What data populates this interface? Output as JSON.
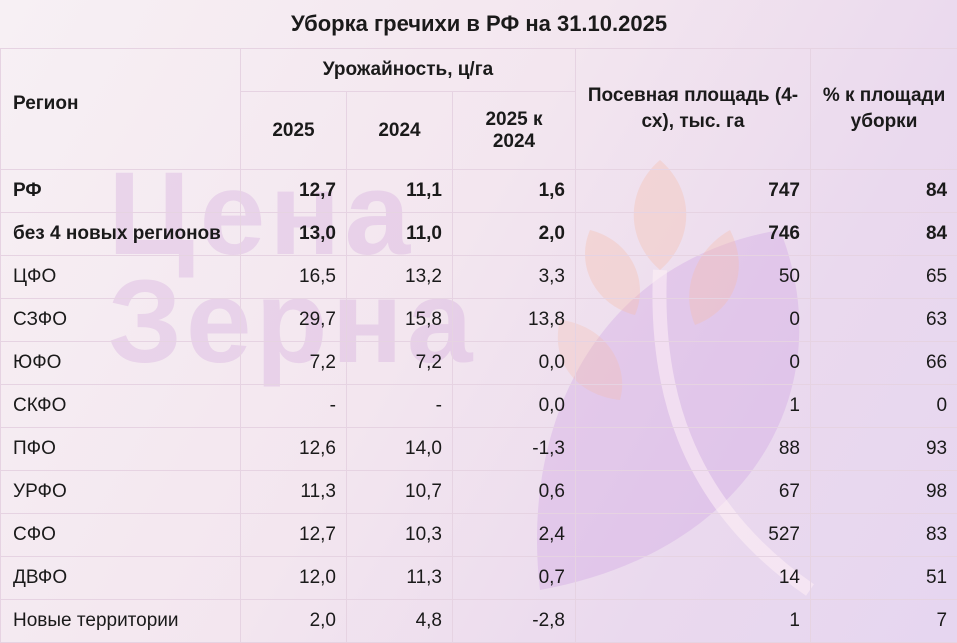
{
  "title": "Уборка гречихи в РФ на 31.10.2025",
  "watermark": {
    "line1": "Цена",
    "line2": "Зерна"
  },
  "header": {
    "region": "Регион",
    "yield_group": "Урожайность, ц/га",
    "y2025": "2025",
    "y2024": "2024",
    "diff": "2025 к 2024",
    "area": "Посевная площадь (4-сх), тыс. га",
    "pct": "% к площади уборки"
  },
  "rows": [
    {
      "region": "РФ",
      "y2025": "12,7",
      "y2024": "11,1",
      "diff": "1,6",
      "area": "747",
      "pct": "84",
      "bold": true
    },
    {
      "region": "без 4 новых регионов",
      "y2025": "13,0",
      "y2024": "11,0",
      "diff": "2,0",
      "area": "746",
      "pct": "84",
      "bold": true
    },
    {
      "region": "ЦФО",
      "y2025": "16,5",
      "y2024": "13,2",
      "diff": "3,3",
      "area": "50",
      "pct": "65"
    },
    {
      "region": "СЗФО",
      "y2025": "29,7",
      "y2024": "15,8",
      "diff": "13,8",
      "area": "0",
      "pct": "63"
    },
    {
      "region": "ЮФО",
      "y2025": "7,2",
      "y2024": "7,2",
      "diff": "0,0",
      "area": "0",
      "pct": "66"
    },
    {
      "region": "СКФО",
      "y2025": "-",
      "y2024": "-",
      "diff": "0,0",
      "area": "1",
      "pct": "0"
    },
    {
      "region": "ПФО",
      "y2025": "12,6",
      "y2024": "14,0",
      "diff": "-1,3",
      "area": "88",
      "pct": "93"
    },
    {
      "region": "УРФО",
      "y2025": "11,3",
      "y2024": "10,7",
      "diff": "0,6",
      "area": "67",
      "pct": "98"
    },
    {
      "region": "СФО",
      "y2025": "12,7",
      "y2024": "10,3",
      "diff": "2,4",
      "area": "527",
      "pct": "83"
    },
    {
      "region": "ДВФО",
      "y2025": "12,0",
      "y2024": "11,3",
      "diff": "0,7",
      "area": "14",
      "pct": "51"
    },
    {
      "region": "Новые территории",
      "y2025": "2,0",
      "y2024": "4,8",
      "diff": "-2,8",
      "area": "1",
      "pct": "7"
    }
  ]
}
